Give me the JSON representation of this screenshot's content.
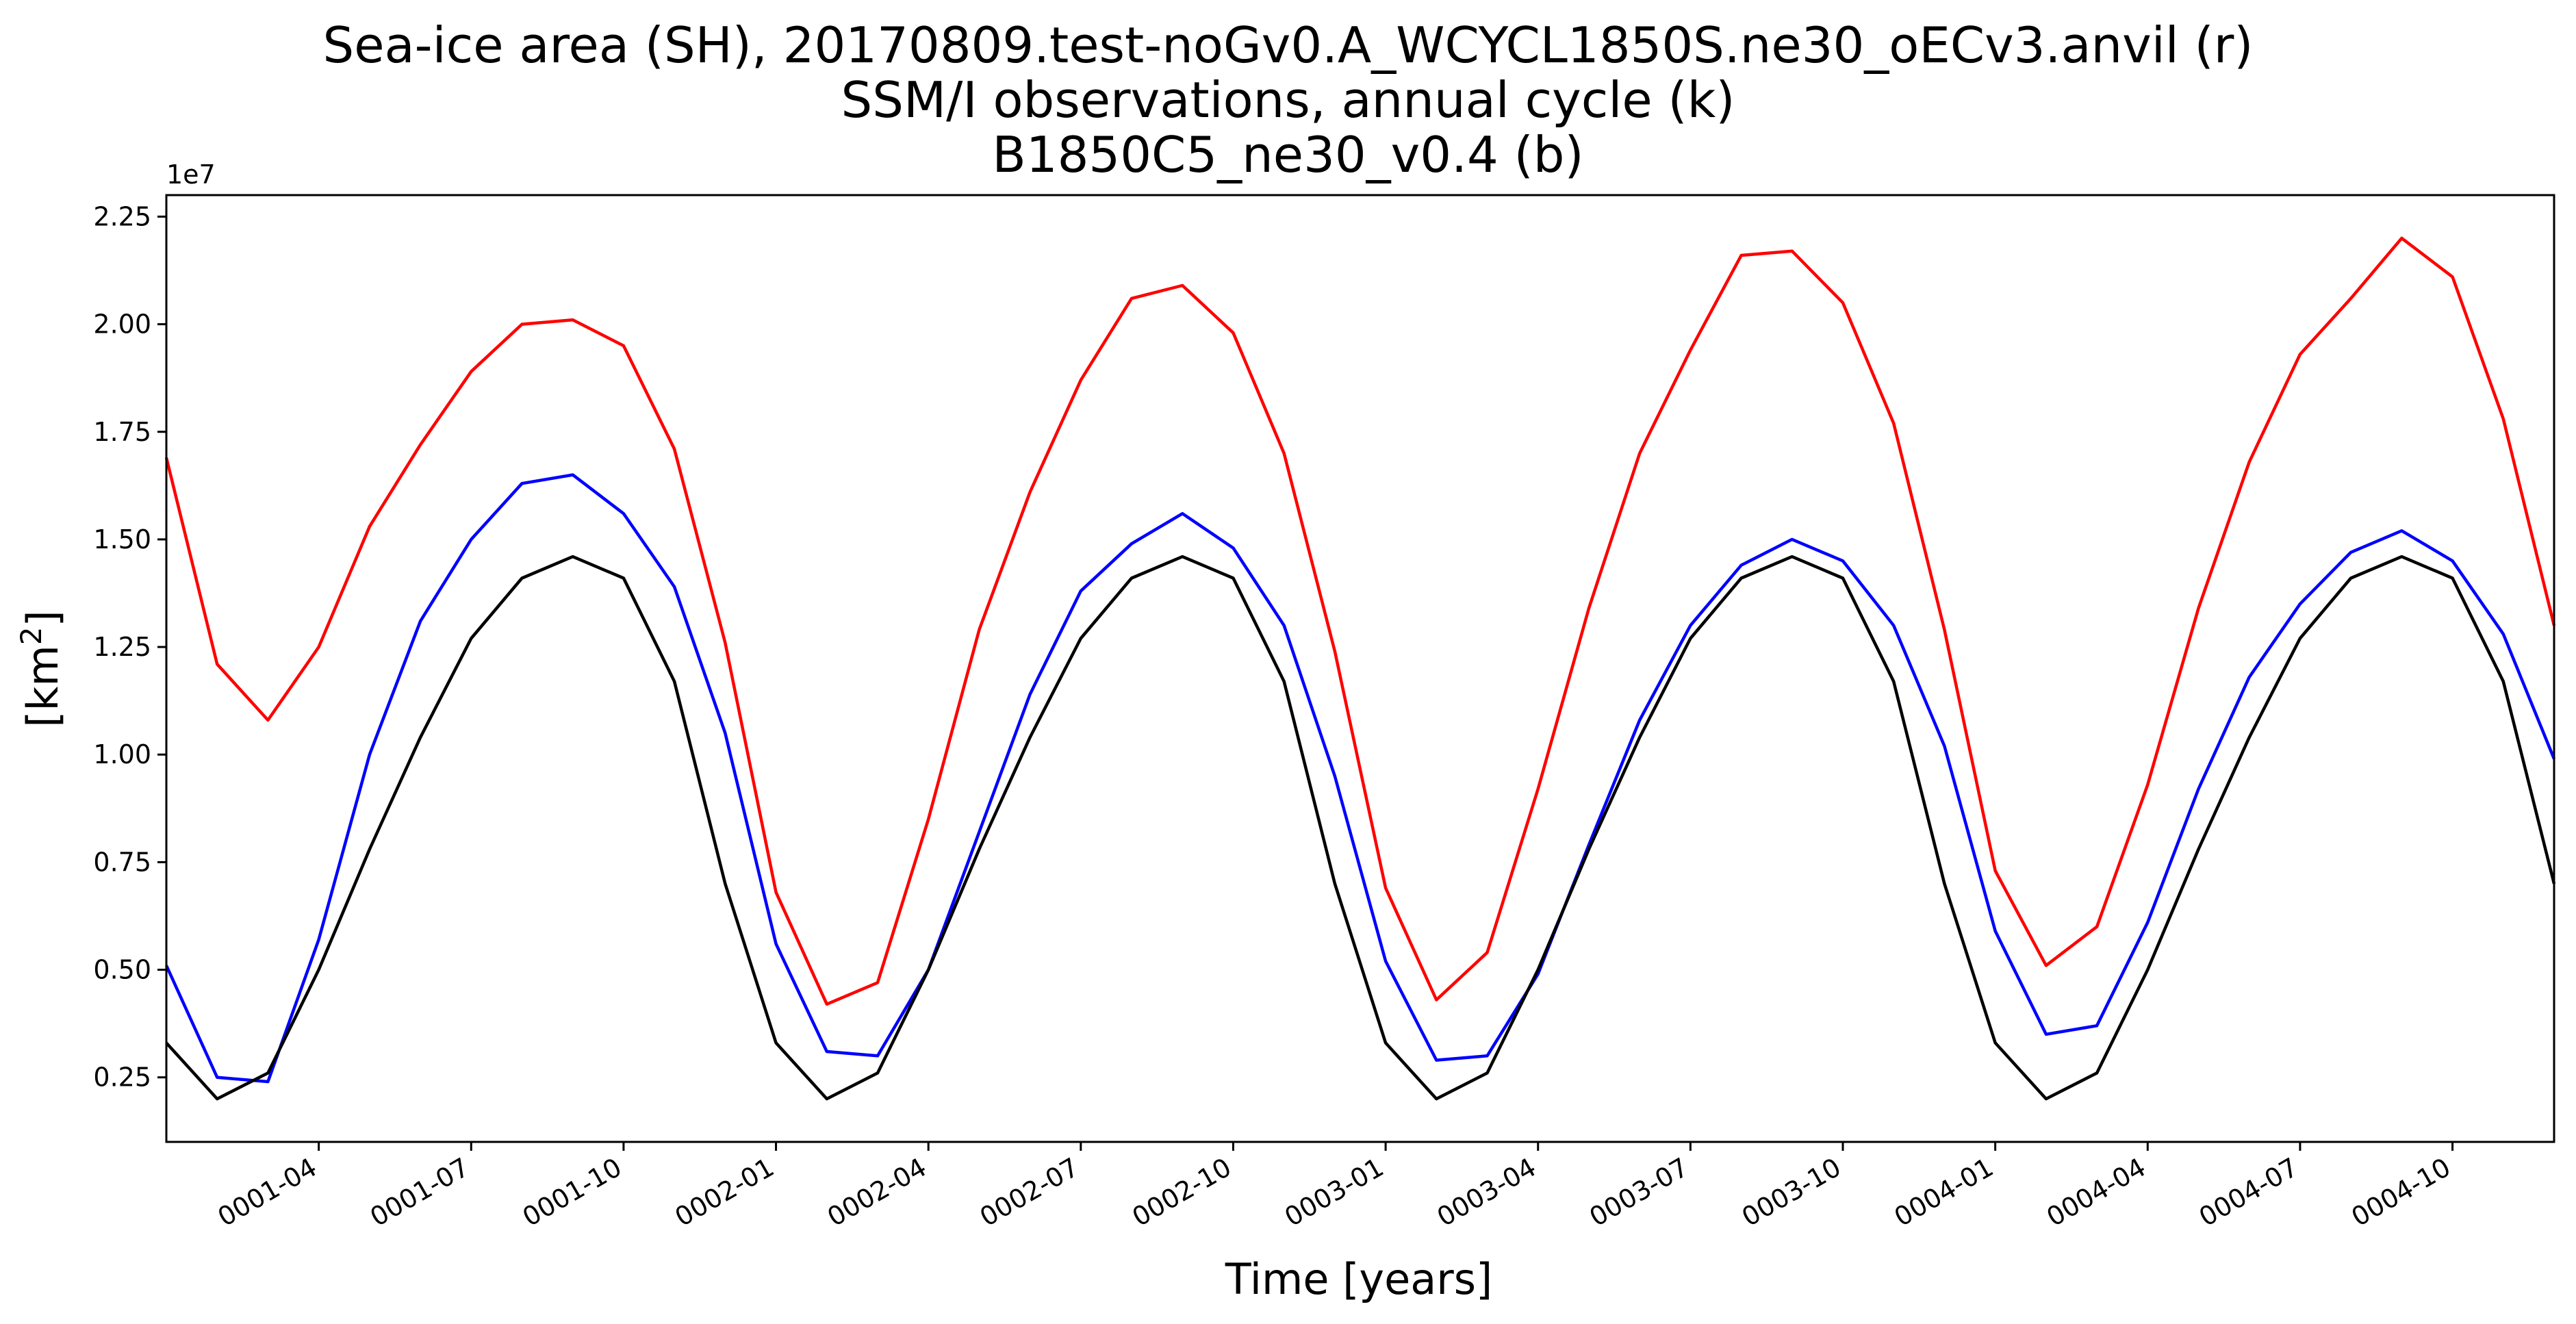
{
  "chart_data": {
    "type": "line",
    "title_lines": [
      "Sea-ice area (SH), 20170809.test-noGv0.A_WCYCL1850S.ne30_oECv3.anvil (r)",
      "SSM/I observations, annual cycle (k)",
      "B1850C5_ne30_v0.4 (b)"
    ],
    "xlabel": "Time [years]",
    "ylabel_base": "[km",
    "ylabel_sup": "2",
    "ylabel_end": "]",
    "y_offset_label": "1e7",
    "xlim": [
      "0001-01",
      "0004-12"
    ],
    "ylim": [
      0.1,
      2.3
    ],
    "y_ticks": [
      0.25,
      0.5,
      0.75,
      1.0,
      1.25,
      1.5,
      1.75,
      2.0,
      2.25
    ],
    "y_tick_labels": [
      "0.25",
      "0.50",
      "0.75",
      "1.00",
      "1.25",
      "1.50",
      "1.75",
      "2.00",
      "2.25"
    ],
    "x_tick_labels": [
      "0001-04",
      "0001-07",
      "0001-10",
      "0002-01",
      "0002-04",
      "0002-07",
      "0002-10",
      "0003-01",
      "0003-04",
      "0003-07",
      "0003-10",
      "0004-01",
      "0004-04",
      "0004-07",
      "0004-10"
    ],
    "x_tick_months": [
      3,
      6,
      9,
      12,
      15,
      18,
      21,
      24,
      27,
      30,
      33,
      36,
      39,
      42,
      45
    ],
    "grid": false,
    "legend": "none",
    "series": [
      {
        "color": "#ff0000",
        "values": [
          1.69,
          1.21,
          1.08,
          1.25,
          1.53,
          1.72,
          1.89,
          2.0,
          2.01,
          1.95,
          1.71,
          1.26,
          0.68,
          0.42,
          0.47,
          0.85,
          1.29,
          1.61,
          1.87,
          2.06,
          2.09,
          1.98,
          1.7,
          1.24,
          0.69,
          0.43,
          0.54,
          0.92,
          1.34,
          1.7,
          1.94,
          2.16,
          2.17,
          2.05,
          1.77,
          1.29,
          0.73,
          0.51,
          0.6,
          0.93,
          1.34,
          1.68,
          1.93,
          2.06,
          2.2,
          2.11,
          1.78,
          1.3
        ]
      },
      {
        "color": "#0000ff",
        "values": [
          0.51,
          0.25,
          0.24,
          0.57,
          1.0,
          1.31,
          1.5,
          1.63,
          1.65,
          1.56,
          1.39,
          1.05,
          0.56,
          0.31,
          0.3,
          0.5,
          0.82,
          1.14,
          1.38,
          1.49,
          1.56,
          1.48,
          1.3,
          0.95,
          0.52,
          0.29,
          0.3,
          0.49,
          0.79,
          1.08,
          1.3,
          1.44,
          1.5,
          1.45,
          1.3,
          1.02,
          0.59,
          0.35,
          0.37,
          0.61,
          0.92,
          1.18,
          1.35,
          1.47,
          1.52,
          1.45,
          1.28,
          0.99
        ]
      },
      {
        "color": "#000000",
        "values": [
          0.33,
          0.2,
          0.26,
          0.5,
          0.78,
          1.04,
          1.27,
          1.41,
          1.46,
          1.41,
          1.17,
          0.7,
          0.33,
          0.2,
          0.26,
          0.5,
          0.78,
          1.04,
          1.27,
          1.41,
          1.46,
          1.41,
          1.17,
          0.7,
          0.33,
          0.2,
          0.26,
          0.5,
          0.78,
          1.04,
          1.27,
          1.41,
          1.46,
          1.41,
          1.17,
          0.7,
          0.33,
          0.2,
          0.26,
          0.5,
          0.78,
          1.04,
          1.27,
          1.41,
          1.46,
          1.41,
          1.17,
          0.7
        ]
      }
    ]
  }
}
